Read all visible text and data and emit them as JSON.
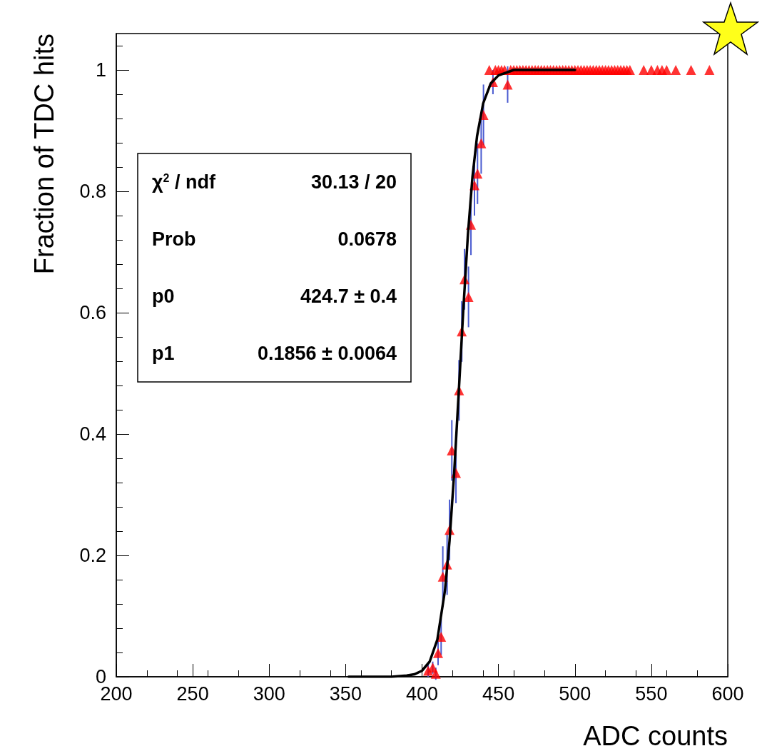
{
  "chart_data": {
    "type": "scatter",
    "xlabel": "ADC counts",
    "ylabel": "Fraction of TDC hits",
    "xlim": [
      200,
      600
    ],
    "xticks": [
      200,
      250,
      300,
      350,
      400,
      450,
      500,
      550,
      600
    ],
    "ylim": [
      0,
      1.06
    ],
    "yticks": [
      0,
      0.2,
      0.4,
      0.6,
      0.8,
      1
    ],
    "grid": false,
    "annotations": [
      "χ$^{2}$ / ndf",
      "30.13 / 20",
      "Prob",
      "0.0678",
      "p0",
      "424.7 ± 0.4",
      "p1",
      "0.1856 ± 0.0064"
    ],
    "series": [
      {
        "color": "#ff0000",
        "marker": "triangle",
        "x": [
          404,
          407,
          409,
          410.5,
          412.5,
          413.6,
          416.4,
          418,
          419.5,
          422.2,
          424.2,
          426,
          427.8,
          430.4,
          432,
          434.3,
          436.3,
          438.7,
          440.2,
          446.4,
          456,
          444,
          448,
          450,
          452,
          454,
          458,
          460,
          462,
          464,
          466,
          468,
          470,
          472,
          474,
          476,
          478,
          480,
          482,
          484,
          486,
          488,
          490,
          492,
          494,
          496,
          498,
          500,
          502,
          504,
          506,
          508,
          510,
          512,
          514,
          516,
          518,
          520,
          522,
          524,
          526,
          528,
          530,
          532,
          534,
          536,
          545,
          550,
          554,
          557,
          560,
          566,
          576,
          588
        ],
        "values": [
          0.01,
          0.015,
          0.005,
          0.039,
          0.066,
          0.165,
          0.185,
          0.242,
          0.373,
          0.336,
          0.472,
          0.569,
          0.655,
          0.626,
          0.745,
          0.81,
          0.829,
          0.879,
          0.926,
          0.98,
          0.976,
          1,
          1,
          1,
          1,
          1,
          1,
          1,
          1,
          1,
          1,
          1,
          1,
          1,
          1,
          1,
          1,
          1,
          1,
          1,
          1,
          1,
          1,
          1,
          1,
          1,
          1,
          1,
          1,
          1,
          1,
          1,
          1,
          1,
          1,
          1,
          1,
          1,
          1,
          1,
          1,
          1,
          1,
          1,
          1,
          1,
          1,
          1,
          1,
          1,
          1,
          1,
          1,
          1
        ],
        "errors": [
          0.01,
          0.01,
          0.01,
          0.02,
          0.03,
          0.05,
          0.05,
          0.05,
          0.05,
          0.05,
          0.05,
          0.05,
          0.05,
          0.05,
          0.05,
          0.05,
          0.05,
          0.05,
          0.05,
          0.02,
          0.03,
          null,
          null,
          null,
          null,
          null,
          null,
          null,
          null,
          null,
          null,
          null,
          null,
          null,
          null,
          null,
          null,
          null,
          null,
          null,
          null,
          null,
          null,
          null,
          null,
          null,
          null,
          null,
          null,
          null,
          null,
          null,
          null,
          null,
          null,
          null,
          null,
          null,
          null,
          null,
          null,
          null,
          null,
          null,
          null,
          null,
          null,
          null,
          null,
          null,
          null,
          null,
          null,
          null
        ]
      },
      {
        "type": "line",
        "color": "#000000",
        "marker": "none",
        "line_style": "solid",
        "x": [
          352,
          370,
          380,
          390,
          395,
          400,
          405,
          410,
          415,
          418,
          421,
          424,
          427,
          430,
          433,
          436,
          440,
          445,
          450,
          460,
          480,
          500
        ],
        "values": [
          0,
          0,
          0,
          0.002,
          0.004,
          0.01,
          0.025,
          0.061,
          0.142,
          0.224,
          0.335,
          0.468,
          0.605,
          0.728,
          0.824,
          0.891,
          0.945,
          0.978,
          0.991,
          1,
          1,
          1
        ]
      }
    ]
  }
}
